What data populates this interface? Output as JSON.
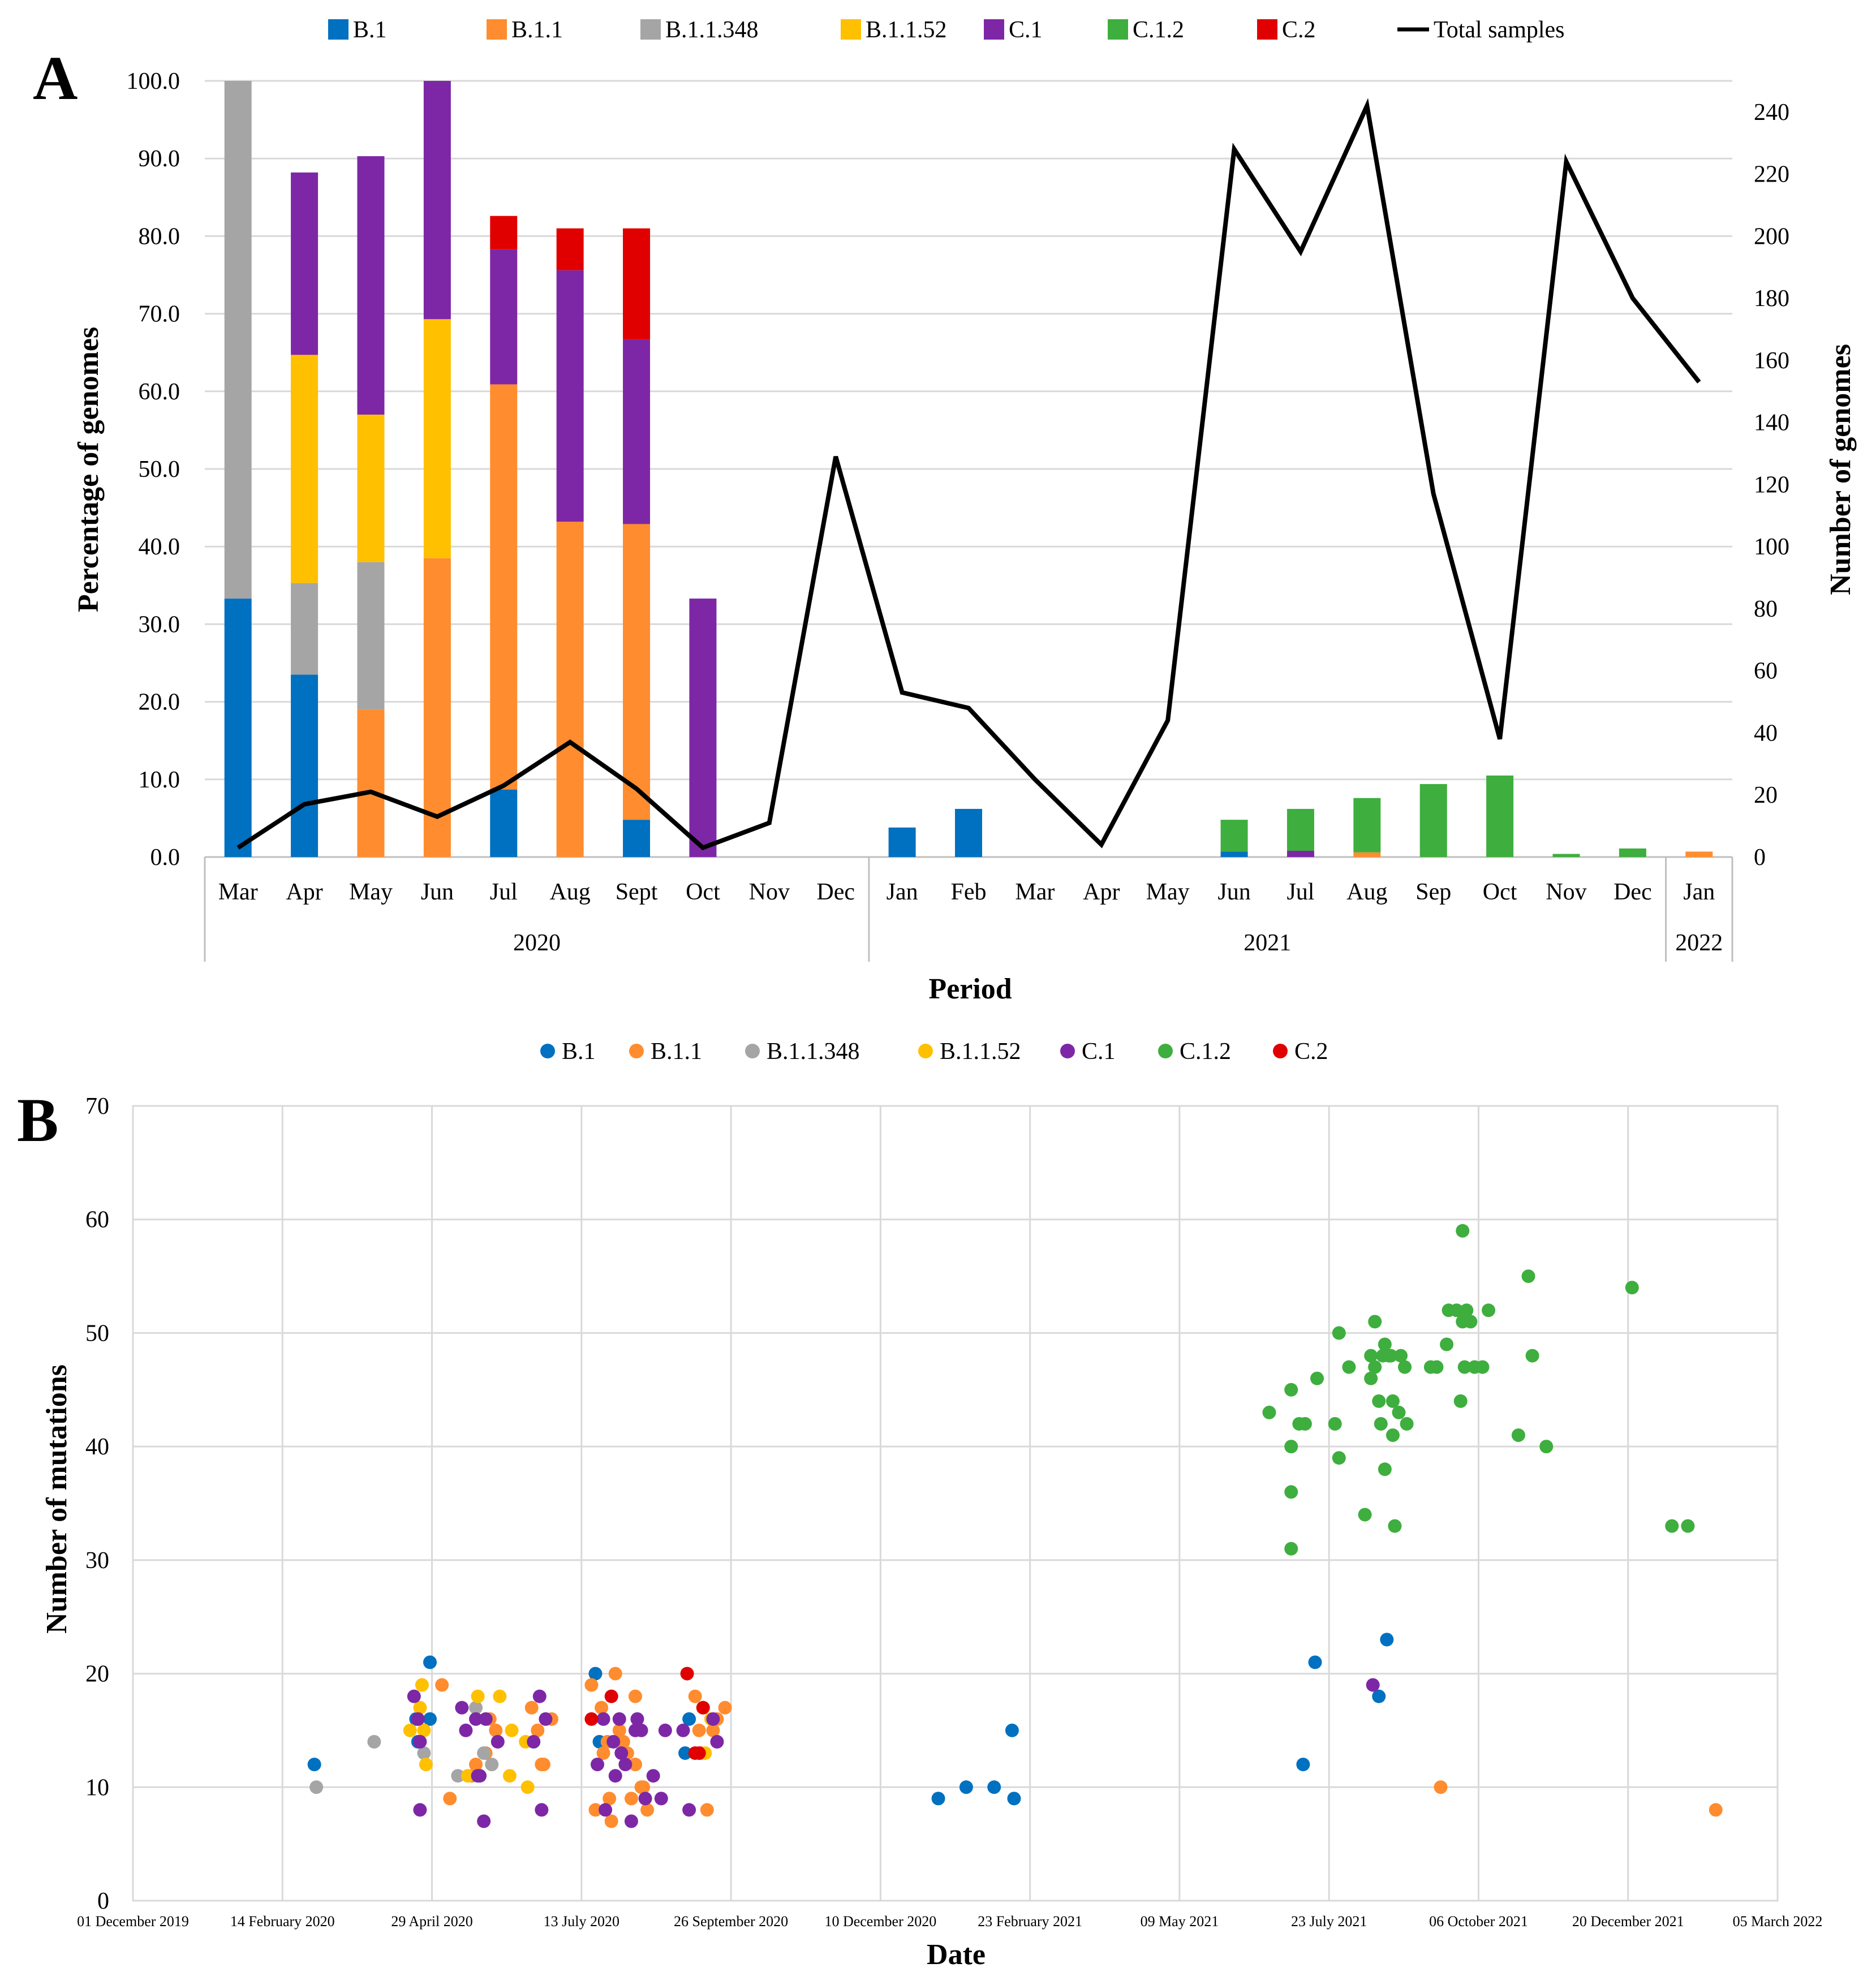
{
  "chart_data": [
    {
      "panel": "A",
      "type": "bar",
      "subtype": "stacked bar with line on secondary axis",
      "xlabel": "Period",
      "ylabel": "Percentage of genomes",
      "y2label": "Number of genomes",
      "ylim": [
        0,
        100
      ],
      "yticks": [
        "0.0",
        "10.0",
        "20.0",
        "30.0",
        "40.0",
        "50.0",
        "60.0",
        "70.0",
        "80.0",
        "90.0",
        "100.0"
      ],
      "y2lim": [
        0,
        250
      ],
      "y2ticks": [
        0,
        20,
        40,
        60,
        80,
        100,
        120,
        140,
        160,
        180,
        200,
        220,
        240
      ],
      "categories": [
        "Mar",
        "Apr",
        "May",
        "Jun",
        "Jul",
        "Aug",
        "Sept",
        "Oct",
        "Nov",
        "Dec",
        "Jan",
        "Feb",
        "Mar",
        "Apr",
        "May",
        "Jun",
        "Jul",
        "Aug",
        "Sep",
        "Oct",
        "Nov",
        "Dec",
        "Jan"
      ],
      "year_groups": [
        {
          "label": "2020",
          "start": 0,
          "end": 9
        },
        {
          "label": "2021",
          "start": 10,
          "end": 21
        },
        {
          "label": "2022",
          "start": 22,
          "end": 22
        }
      ],
      "series": [
        {
          "name": "B.1",
          "color": "#0070C0",
          "values": [
            33.3,
            23.5,
            0,
            0,
            8.7,
            0,
            4.8,
            0,
            0,
            0,
            3.8,
            6.2,
            0,
            0,
            0,
            0.7,
            0,
            0,
            0,
            0,
            0,
            0,
            0
          ]
        },
        {
          "name": "B.1.1",
          "color": "#FF8C2E",
          "values": [
            0,
            0,
            19.0,
            38.5,
            52.2,
            43.2,
            38.1,
            0,
            0,
            0,
            0,
            0,
            0,
            0,
            0,
            0,
            0,
            0.6,
            0,
            0,
            0,
            0,
            0.7
          ]
        },
        {
          "name": "B.1.1.348",
          "color": "#A5A5A5",
          "values": [
            66.7,
            11.8,
            19.0,
            0,
            0,
            0,
            0,
            0,
            0,
            0,
            0,
            0,
            0,
            0,
            0,
            0,
            0,
            0,
            0,
            0,
            0,
            0,
            0
          ]
        },
        {
          "name": "B.1.1.52",
          "color": "#FFC000",
          "values": [
            0,
            29.4,
            19.0,
            30.8,
            0,
            0,
            0,
            0,
            0,
            0,
            0,
            0,
            0,
            0,
            0,
            0,
            0,
            0,
            0,
            0,
            0,
            0,
            0
          ]
        },
        {
          "name": "C.1",
          "color": "#7D27A6",
          "values": [
            0,
            23.5,
            33.3,
            30.7,
            17.4,
            32.4,
            23.8,
            33.3,
            0,
            0,
            0,
            0,
            0,
            0,
            0,
            0,
            0.8,
            0,
            0,
            0,
            0,
            0,
            0
          ]
        },
        {
          "name": "C.1.2",
          "color": "#3EAE3E",
          "values": [
            0,
            0,
            0,
            0,
            0,
            0,
            0,
            0,
            0,
            0,
            0,
            0,
            0,
            0,
            0,
            4.1,
            5.4,
            7.0,
            9.4,
            10.5,
            0.4,
            1.1,
            0
          ]
        },
        {
          "name": "C.2",
          "color": "#E00000",
          "values": [
            0,
            0,
            0,
            0,
            4.3,
            5.4,
            14.3,
            0,
            0,
            0,
            0,
            0,
            0,
            0,
            0,
            0,
            0,
            0,
            0,
            0,
            0,
            0,
            0
          ]
        }
      ],
      "line": {
        "name": "Total samples",
        "color": "#000000",
        "axis": "secondary",
        "values": [
          3,
          17,
          21,
          13,
          23,
          37,
          22,
          3,
          11,
          129,
          53,
          48,
          25,
          4,
          44,
          228,
          195,
          242,
          117,
          38,
          224,
          180,
          153
        ]
      }
    },
    {
      "panel": "B",
      "type": "scatter",
      "xlabel": "Date",
      "ylabel": "Number of mutations",
      "ylim": [
        0,
        70
      ],
      "yticks": [
        0,
        10,
        20,
        30,
        40,
        50,
        60,
        70
      ],
      "x_unit": "days since 01 December 2019",
      "xlim": [
        0,
        825
      ],
      "xticks": [
        {
          "day": 0,
          "label": "01 December 2019"
        },
        {
          "day": 75,
          "label": "14 February 2020"
        },
        {
          "day": 150,
          "label": "29 April 2020"
        },
        {
          "day": 225,
          "label": "13 July 2020"
        },
        {
          "day": 300,
          "label": "26 September 2020"
        },
        {
          "day": 375,
          "label": "10 December 2020"
        },
        {
          "day": 450,
          "label": "23 February 2021"
        },
        {
          "day": 525,
          "label": "09 May 2021"
        },
        {
          "day": 600,
          "label": "23 July 2021"
        },
        {
          "day": 675,
          "label": "06 October 2021"
        },
        {
          "day": 750,
          "label": "20 December 2021"
        },
        {
          "day": 825,
          "label": "05 March 2022"
        }
      ],
      "series": [
        {
          "name": "B.1",
          "color": "#0070C0",
          "points": [
            [
              91,
              12
            ],
            [
              142,
              16
            ],
            [
              149,
              21
            ],
            [
              143,
              14
            ],
            [
              149,
              16
            ],
            [
              232,
              20
            ],
            [
              279,
              16
            ],
            [
              277,
              13
            ],
            [
              404,
              9
            ],
            [
              418,
              10
            ],
            [
              432,
              10
            ],
            [
              441,
              15
            ],
            [
              442,
              9
            ],
            [
              587,
              12
            ],
            [
              593,
              21
            ],
            [
              629,
              23
            ],
            [
              625,
              18
            ],
            [
              234,
              14
            ]
          ]
        },
        {
          "name": "B.1.1",
          "color": "#FF8C2E",
          "points": [
            [
              155,
              19
            ],
            [
              159,
              9
            ],
            [
              170,
              11
            ],
            [
              172,
              12
            ],
            [
              177,
              13
            ],
            [
              179,
              16
            ],
            [
              182,
              15
            ],
            [
              200,
              17
            ],
            [
              203,
              15
            ],
            [
              205,
              12
            ],
            [
              206,
              12
            ],
            [
              210,
              16
            ],
            [
              230,
              19
            ],
            [
              232,
              8
            ],
            [
              235,
              17
            ],
            [
              236,
              13
            ],
            [
              239,
              9
            ],
            [
              240,
              7
            ],
            [
              242,
              20
            ],
            [
              244,
              15
            ],
            [
              248,
              13
            ],
            [
              250,
              9
            ],
            [
              252,
              12
            ],
            [
              252,
              18
            ],
            [
              255,
              10
            ],
            [
              256,
              10
            ],
            [
              258,
              8
            ],
            [
              282,
              18
            ],
            [
              284,
              15
            ],
            [
              285,
              13
            ],
            [
              286,
              17
            ],
            [
              288,
              8
            ],
            [
              291,
              15
            ],
            [
              293,
              16
            ],
            [
              297,
              17
            ],
            [
              656,
              10
            ],
            [
              794,
              8
            ],
            [
              246,
              14
            ],
            [
              238,
              14
            ]
          ]
        },
        {
          "name": "B.1.1.348",
          "color": "#A5A5A5",
          "points": [
            [
              92,
              10
            ],
            [
              121,
              14
            ],
            [
              146,
              13
            ],
            [
              163,
              11
            ],
            [
              172,
              17
            ],
            [
              180,
              12
            ],
            [
              176,
              13
            ]
          ]
        },
        {
          "name": "B.1.1.52",
          "color": "#FFC000",
          "points": [
            [
              139,
              15
            ],
            [
              144,
              17
            ],
            [
              145,
              19
            ],
            [
              146,
              15
            ],
            [
              147,
              12
            ],
            [
              168,
              11
            ],
            [
              173,
              18
            ],
            [
              184,
              18
            ],
            [
              189,
              11
            ],
            [
              190,
              15
            ],
            [
              197,
              14
            ],
            [
              198,
              10
            ],
            [
              287,
              13
            ],
            [
              290,
              16
            ]
          ]
        },
        {
          "name": "C.1",
          "color": "#7D27A6",
          "points": [
            [
              141,
              18
            ],
            [
              143,
              16
            ],
            [
              144,
              14
            ],
            [
              144,
              8
            ],
            [
              165,
              17
            ],
            [
              167,
              15
            ],
            [
              172,
              16
            ],
            [
              173,
              11
            ],
            [
              174,
              11
            ],
            [
              176,
              7
            ],
            [
              177,
              16
            ],
            [
              183,
              14
            ],
            [
              201,
              14
            ],
            [
              204,
              18
            ],
            [
              205,
              8
            ],
            [
              207,
              16
            ],
            [
              233,
              12
            ],
            [
              236,
              16
            ],
            [
              237,
              8
            ],
            [
              241,
              14
            ],
            [
              242,
              11
            ],
            [
              244,
              16
            ],
            [
              245,
              13
            ],
            [
              247,
              12
            ],
            [
              250,
              7
            ],
            [
              252,
              15
            ],
            [
              253,
              16
            ],
            [
              255,
              15
            ],
            [
              257,
              9
            ],
            [
              261,
              11
            ],
            [
              265,
              9
            ],
            [
              267,
              15
            ],
            [
              276,
              15
            ],
            [
              279,
              8
            ],
            [
              291,
              16
            ],
            [
              293,
              14
            ],
            [
              622,
              19
            ]
          ]
        },
        {
          "name": "C.1.2",
          "color": "#3EAE3E",
          "points": [
            [
              570,
              43
            ],
            [
              581,
              40
            ],
            [
              581,
              45
            ],
            [
              581,
              36
            ],
            [
              581,
              31
            ],
            [
              585,
              42
            ],
            [
              588,
              42
            ],
            [
              594,
              46
            ],
            [
              603,
              42
            ],
            [
              605,
              39
            ],
            [
              605,
              50
            ],
            [
              610,
              47
            ],
            [
              618,
              34
            ],
            [
              621,
              46
            ],
            [
              621,
              48
            ],
            [
              623,
              51
            ],
            [
              623,
              47
            ],
            [
              625,
              44
            ],
            [
              626,
              42
            ],
            [
              627,
              48
            ],
            [
              628,
              38
            ],
            [
              628,
              49
            ],
            [
              630,
              48
            ],
            [
              631,
              48
            ],
            [
              632,
              44
            ],
            [
              632,
              41
            ],
            [
              633,
              33
            ],
            [
              635,
              43
            ],
            [
              636,
              48
            ],
            [
              638,
              47
            ],
            [
              639,
              42
            ],
            [
              651,
              47
            ],
            [
              654,
              47
            ],
            [
              659,
              49
            ],
            [
              660,
              52
            ],
            [
              664,
              52
            ],
            [
              666,
              44
            ],
            [
              667,
              59
            ],
            [
              667,
              51
            ],
            [
              668,
              47
            ],
            [
              669,
              52
            ],
            [
              671,
              51
            ],
            [
              673,
              47
            ],
            [
              677,
              47
            ],
            [
              680,
              52
            ],
            [
              695,
              41
            ],
            [
              700,
              55
            ],
            [
              702,
              48
            ],
            [
              709,
              40
            ],
            [
              752,
              54
            ],
            [
              772,
              33
            ],
            [
              780,
              33
            ]
          ]
        },
        {
          "name": "C.2",
          "color": "#E00000",
          "points": [
            [
              230,
              16
            ],
            [
              240,
              18
            ],
            [
              278,
              20
            ],
            [
              282,
              13
            ],
            [
              284,
              13
            ],
            [
              286,
              17
            ]
          ]
        }
      ]
    }
  ],
  "legend_A": [
    "B.1",
    "B.1.1",
    "B.1.1.348",
    "B.1.1.52",
    "C.1",
    "C.1.2",
    "C.2",
    "Total samples"
  ],
  "legend_B": [
    "B.1",
    "B.1.1",
    "B.1.1.348",
    "B.1.1.52",
    "C.1",
    "C.1.2",
    "C.2"
  ],
  "panel_label_A": "A",
  "panel_label_B": "B"
}
